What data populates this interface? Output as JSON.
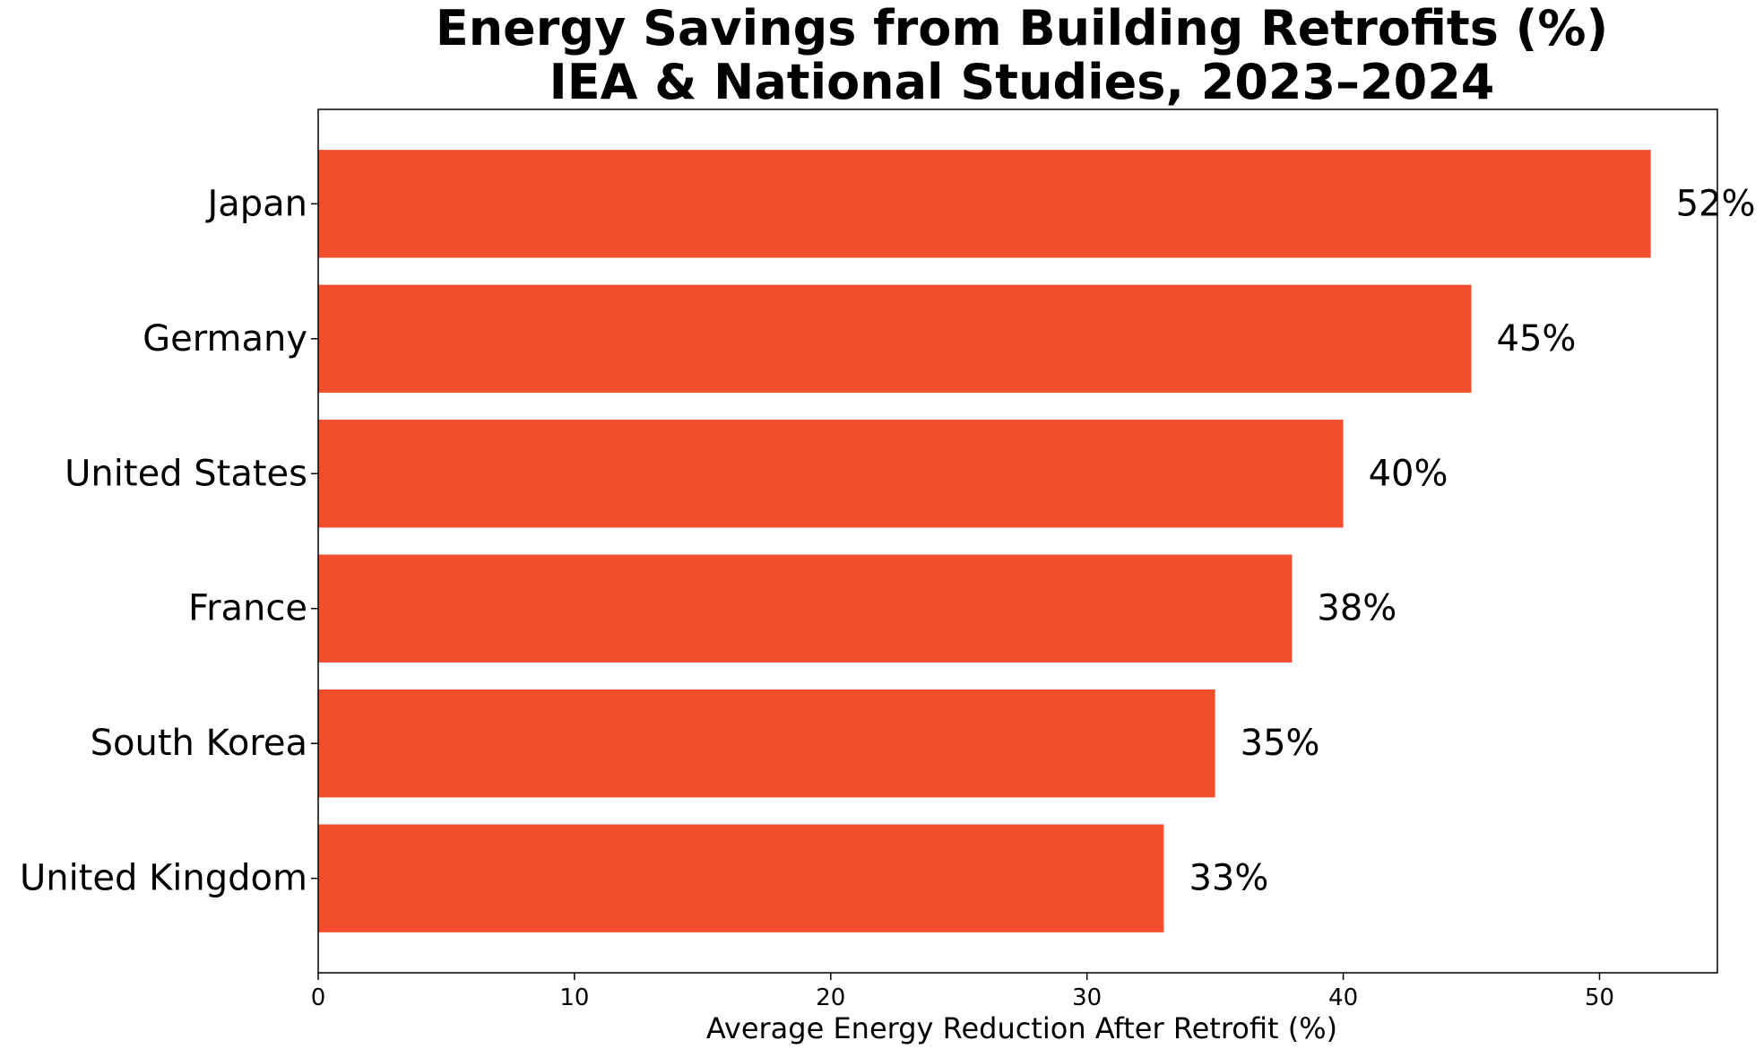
{
  "chart_data": {
    "type": "bar",
    "orientation": "horizontal",
    "title_lines": [
      "Energy Savings from Building Retrofits (%)",
      "IEA & National Studies, 2023–2024"
    ],
    "xlabel": "Average Energy Reduction After Retrofit (%)",
    "ylabel": "",
    "categories": [
      "Japan",
      "Germany",
      "United States",
      "France",
      "South Korea",
      "United Kingdom"
    ],
    "values": [
      52,
      45,
      40,
      38,
      35,
      33
    ],
    "value_labels": [
      "52%",
      "45%",
      "40%",
      "38%",
      "35%",
      "33%"
    ],
    "xlim": [
      0,
      54.6
    ],
    "xticks": [
      0,
      10,
      20,
      30,
      40,
      50
    ],
    "xtick_labels": [
      "0",
      "10",
      "20",
      "30",
      "40",
      "50"
    ],
    "bar_color": "#f34f2f",
    "grid": false,
    "legend": "none"
  }
}
